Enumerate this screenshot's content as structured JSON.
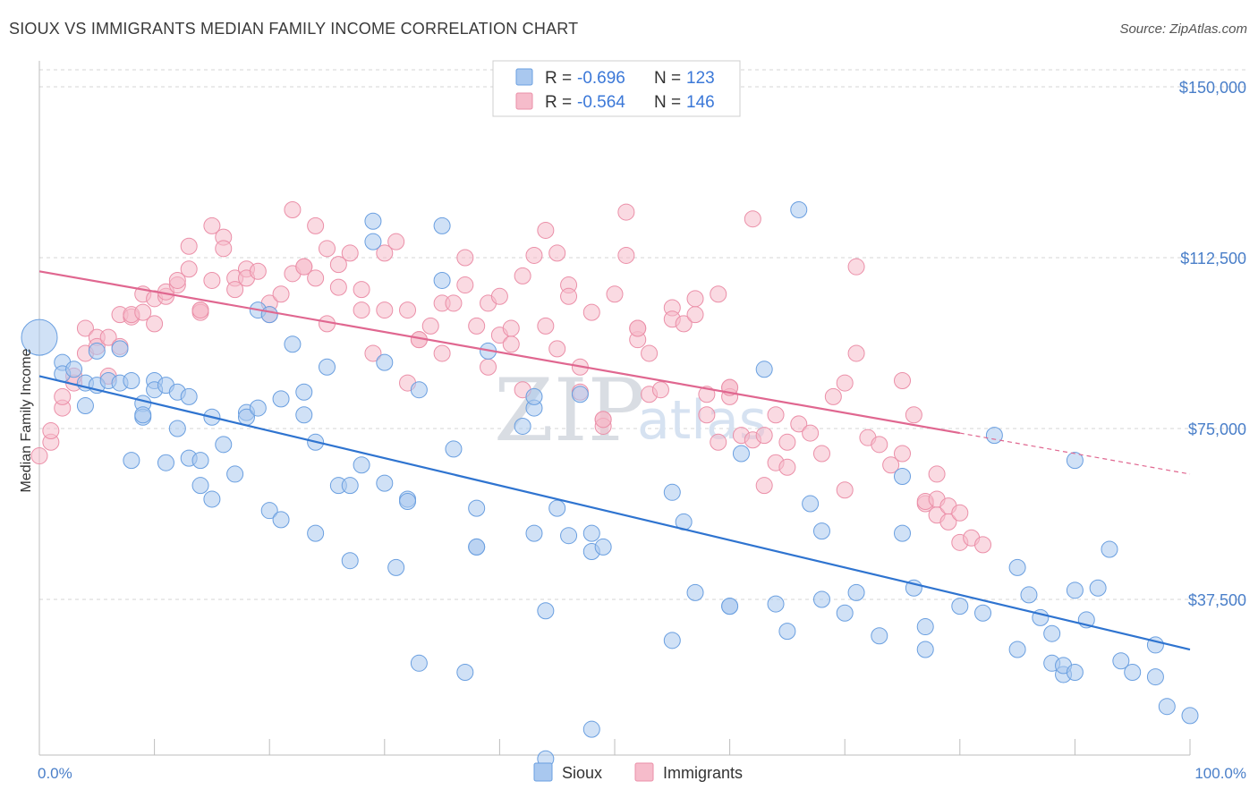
{
  "title": "SIOUX VS IMMIGRANTS MEDIAN FAMILY INCOME CORRELATION CHART",
  "source": "Source: ZipAtlas.com",
  "colors": {
    "sioux_fill": "#a9c8ef",
    "sioux_stroke": "#6a9fe0",
    "sioux_line": "#2f74d0",
    "immig_fill": "#f6bccb",
    "immig_stroke": "#eb8fa8",
    "immig_line": "#e06790",
    "accent_text": "#3b78d8"
  },
  "legend": {
    "r_label": "R =",
    "n_label": "N =",
    "sioux_r": "-0.696",
    "sioux_n": "123",
    "immig_r": "-0.564",
    "immig_n": "146"
  },
  "watermark": {
    "zip": "ZIP",
    "atlas": "atlas"
  },
  "chart_data": {
    "type": "scatter",
    "title": "SIOUX VS IMMIGRANTS MEDIAN FAMILY INCOME CORRELATION CHART",
    "xlabel": "",
    "ylabel": "Median Family Income",
    "xlim": [
      0,
      100
    ],
    "ylim": [
      0,
      155000
    ],
    "x_tick_labels": [
      "0.0%",
      "100.0%"
    ],
    "y_ticks": [
      37500,
      75000,
      112500,
      150000
    ],
    "y_tick_labels": [
      "$37,500",
      "$75,000",
      "$112,500",
      "$150,000"
    ],
    "grid": true,
    "legend_position": "top-center",
    "series": [
      {
        "name": "Sioux",
        "r": -0.696,
        "n": 123,
        "trend": {
          "x0": 0,
          "y0": 86500,
          "x1": 100,
          "y1": 26500
        },
        "points": [
          [
            0,
            95000
          ],
          [
            2,
            89500
          ],
          [
            2,
            87000
          ],
          [
            3,
            88000
          ],
          [
            4,
            85000
          ],
          [
            4,
            80000
          ],
          [
            5,
            84500
          ],
          [
            5,
            92000
          ],
          [
            6,
            85500
          ],
          [
            7,
            92500
          ],
          [
            7,
            85000
          ],
          [
            8,
            85500
          ],
          [
            8,
            68000
          ],
          [
            9,
            80500
          ],
          [
            9,
            77500
          ],
          [
            9,
            78000
          ],
          [
            10,
            85500
          ],
          [
            10,
            83500
          ],
          [
            11,
            84500
          ],
          [
            11,
            67500
          ],
          [
            12,
            83000
          ],
          [
            12,
            75000
          ],
          [
            13,
            82000
          ],
          [
            13,
            68500
          ],
          [
            14,
            68000
          ],
          [
            14,
            62500
          ],
          [
            15,
            77500
          ],
          [
            15,
            59500
          ],
          [
            16,
            71500
          ],
          [
            17,
            65000
          ],
          [
            18,
            78500
          ],
          [
            18,
            77500
          ],
          [
            19,
            101000
          ],
          [
            19,
            79500
          ],
          [
            20,
            100000
          ],
          [
            20,
            57000
          ],
          [
            21,
            55000
          ],
          [
            21,
            81500
          ],
          [
            22,
            93500
          ],
          [
            23,
            78000
          ],
          [
            23,
            83000
          ],
          [
            24,
            72000
          ],
          [
            24,
            52000
          ],
          [
            25,
            88500
          ],
          [
            26,
            62500
          ],
          [
            27,
            62500
          ],
          [
            27,
            46000
          ],
          [
            28,
            67000
          ],
          [
            29,
            120500
          ],
          [
            29,
            116000
          ],
          [
            30,
            89500
          ],
          [
            30,
            63000
          ],
          [
            31,
            44500
          ],
          [
            32,
            59500
          ],
          [
            32,
            59000
          ],
          [
            33,
            23500
          ],
          [
            33,
            83500
          ],
          [
            35,
            119500
          ],
          [
            35,
            107500
          ],
          [
            36,
            70500
          ],
          [
            37,
            21500
          ],
          [
            38,
            49000
          ],
          [
            38,
            57500
          ],
          [
            39,
            92000
          ],
          [
            42,
            75500
          ],
          [
            43,
            79500
          ],
          [
            43,
            52000
          ],
          [
            43,
            82000
          ],
          [
            44,
            2500
          ],
          [
            44,
            35000
          ],
          [
            45,
            57500
          ],
          [
            46,
            51500
          ],
          [
            47,
            82500
          ],
          [
            48,
            52000
          ],
          [
            48,
            48000
          ],
          [
            49,
            49000
          ],
          [
            48,
            9000
          ],
          [
            55,
            28500
          ],
          [
            55,
            61000
          ],
          [
            56,
            54500
          ],
          [
            57,
            39000
          ],
          [
            60,
            36000
          ],
          [
            61,
            69500
          ],
          [
            63,
            88000
          ],
          [
            64,
            36500
          ],
          [
            65,
            30500
          ],
          [
            66,
            123000
          ],
          [
            67,
            58500
          ],
          [
            68,
            37500
          ],
          [
            68,
            52500
          ],
          [
            70,
            34500
          ],
          [
            71,
            39000
          ],
          [
            73,
            29500
          ],
          [
            75,
            64500
          ],
          [
            75,
            52000
          ],
          [
            76,
            40000
          ],
          [
            77,
            26500
          ],
          [
            77,
            31500
          ],
          [
            80,
            36000
          ],
          [
            82,
            34500
          ],
          [
            83,
            73500
          ],
          [
            85,
            44500
          ],
          [
            85,
            26500
          ],
          [
            86,
            38500
          ],
          [
            87,
            33500
          ],
          [
            88,
            30000
          ],
          [
            88,
            23500
          ],
          [
            89,
            21000
          ],
          [
            89,
            23000
          ],
          [
            90,
            21500
          ],
          [
            90,
            39500
          ],
          [
            91,
            33000
          ],
          [
            92,
            40000
          ],
          [
            93,
            48500
          ],
          [
            94,
            24000
          ],
          [
            95,
            21500
          ],
          [
            97,
            20500
          ],
          [
            97,
            27500
          ],
          [
            98,
            14000
          ],
          [
            100,
            12000
          ],
          [
            90,
            68000
          ],
          [
            38,
            49000
          ],
          [
            60,
            36000
          ]
        ]
      },
      {
        "name": "Immigrants",
        "r": -0.564,
        "n": 146,
        "trend": {
          "x0": 0,
          "y0": 109500,
          "x1": 80,
          "y1": 74000,
          "dashed_to_x": 100,
          "dashed_to_y": 65000
        },
        "points": [
          [
            0,
            69000
          ],
          [
            1,
            72000
          ],
          [
            1,
            74500
          ],
          [
            2,
            79500
          ],
          [
            2,
            82000
          ],
          [
            3,
            85000
          ],
          [
            3,
            86500
          ],
          [
            4,
            91500
          ],
          [
            4,
            97000
          ],
          [
            5,
            95000
          ],
          [
            5,
            93000
          ],
          [
            6,
            86500
          ],
          [
            6,
            95000
          ],
          [
            7,
            100000
          ],
          [
            7,
            93000
          ],
          [
            8,
            99500
          ],
          [
            8,
            100000
          ],
          [
            9,
            100500
          ],
          [
            9,
            104500
          ],
          [
            10,
            98000
          ],
          [
            10,
            103500
          ],
          [
            11,
            104000
          ],
          [
            11,
            105000
          ],
          [
            12,
            106500
          ],
          [
            12,
            107500
          ],
          [
            13,
            110000
          ],
          [
            13,
            115000
          ],
          [
            14,
            101000
          ],
          [
            14,
            100500
          ],
          [
            15,
            107500
          ],
          [
            15,
            119500
          ],
          [
            16,
            117000
          ],
          [
            16,
            114500
          ],
          [
            17,
            108000
          ],
          [
            17,
            105500
          ],
          [
            18,
            110000
          ],
          [
            18,
            108000
          ],
          [
            19,
            109500
          ],
          [
            20,
            102500
          ],
          [
            20,
            100000
          ],
          [
            21,
            104500
          ],
          [
            22,
            123000
          ],
          [
            22,
            109000
          ],
          [
            23,
            110500
          ],
          [
            24,
            108000
          ],
          [
            24,
            119500
          ],
          [
            25,
            98000
          ],
          [
            25,
            114500
          ],
          [
            26,
            111000
          ],
          [
            26,
            106000
          ],
          [
            27,
            113500
          ],
          [
            28,
            101000
          ],
          [
            28,
            105500
          ],
          [
            29,
            91500
          ],
          [
            30,
            101000
          ],
          [
            30,
            113500
          ],
          [
            31,
            116000
          ],
          [
            32,
            85000
          ],
          [
            32,
            101000
          ],
          [
            33,
            94500
          ],
          [
            34,
            97500
          ],
          [
            35,
            91500
          ],
          [
            35,
            102500
          ],
          [
            36,
            102500
          ],
          [
            37,
            106500
          ],
          [
            37,
            112500
          ],
          [
            38,
            97500
          ],
          [
            39,
            88500
          ],
          [
            39,
            102500
          ],
          [
            40,
            95500
          ],
          [
            40,
            104000
          ],
          [
            41,
            93500
          ],
          [
            41,
            97000
          ],
          [
            42,
            83500
          ],
          [
            42,
            108500
          ],
          [
            43,
            113000
          ],
          [
            44,
            97500
          ],
          [
            44,
            118500
          ],
          [
            45,
            92500
          ],
          [
            45,
            113500
          ],
          [
            46,
            106500
          ],
          [
            46,
            104000
          ],
          [
            47,
            83000
          ],
          [
            47,
            88500
          ],
          [
            48,
            100500
          ],
          [
            49,
            77000
          ],
          [
            49,
            75500
          ],
          [
            50,
            104500
          ],
          [
            51,
            122500
          ],
          [
            51,
            113000
          ],
          [
            52,
            94500
          ],
          [
            52,
            97000
          ],
          [
            53,
            91500
          ],
          [
            53,
            82500
          ],
          [
            54,
            83500
          ],
          [
            55,
            101500
          ],
          [
            55,
            99000
          ],
          [
            56,
            98000
          ],
          [
            57,
            100000
          ],
          [
            57,
            103500
          ],
          [
            58,
            82500
          ],
          [
            58,
            78000
          ],
          [
            59,
            72000
          ],
          [
            59,
            104500
          ],
          [
            60,
            84000
          ],
          [
            60,
            82000
          ],
          [
            61,
            73500
          ],
          [
            62,
            121000
          ],
          [
            62,
            72500
          ],
          [
            63,
            62500
          ],
          [
            63,
            73500
          ],
          [
            64,
            67500
          ],
          [
            64,
            78000
          ],
          [
            65,
            66500
          ],
          [
            65,
            72000
          ],
          [
            66,
            76000
          ],
          [
            67,
            74000
          ],
          [
            68,
            69500
          ],
          [
            69,
            82000
          ],
          [
            70,
            85000
          ],
          [
            70,
            61500
          ],
          [
            71,
            110500
          ],
          [
            71,
            91500
          ],
          [
            72,
            73000
          ],
          [
            73,
            71500
          ],
          [
            74,
            67000
          ],
          [
            75,
            69500
          ],
          [
            75,
            85500
          ],
          [
            76,
            78000
          ],
          [
            77,
            58500
          ],
          [
            77,
            59000
          ],
          [
            78,
            56000
          ],
          [
            78,
            59500
          ],
          [
            78,
            65000
          ],
          [
            79,
            58000
          ],
          [
            79,
            54500
          ],
          [
            80,
            56500
          ],
          [
            80,
            50000
          ],
          [
            81,
            51000
          ],
          [
            82,
            49500
          ],
          [
            60,
            84000
          ],
          [
            33,
            94500
          ],
          [
            49,
            77000
          ],
          [
            23,
            110500
          ],
          [
            14,
            101000
          ],
          [
            52,
            97000
          ]
        ]
      }
    ]
  }
}
